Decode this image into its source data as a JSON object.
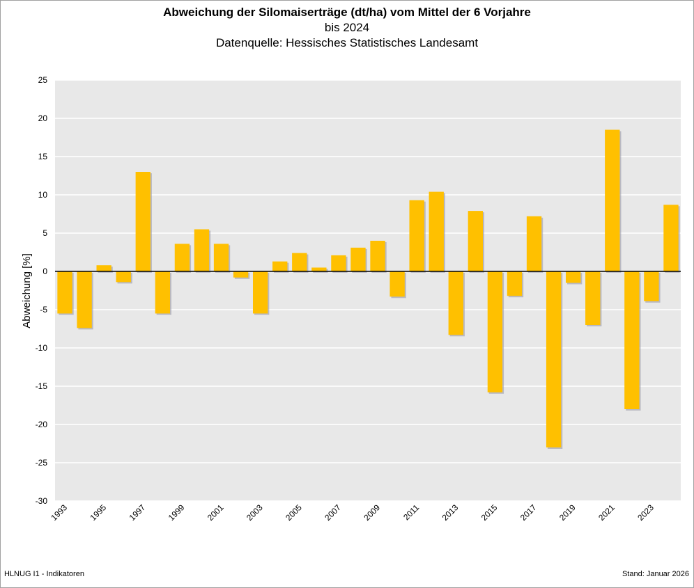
{
  "chart_data": {
    "type": "bar",
    "title": "Abweichung der Silomaiserträge (dt/ha) vom Mittel der 6 Vorjahre",
    "subtitle": "bis 2024",
    "source": "Datenquelle: Hessisches Statistisches Landesamt",
    "xlabel": "",
    "ylabel": "Abweichung [%]",
    "ylim": [
      -30,
      25
    ],
    "yticks": [
      25,
      20,
      15,
      10,
      5,
      0,
      -5,
      -10,
      -15,
      -20,
      -25,
      -30
    ],
    "grid": true,
    "bar_color": "#FFC000",
    "plot_background": "#E8E8E8",
    "categories": [
      "1993",
      "1994",
      "1995",
      "1996",
      "1997",
      "1998",
      "1999",
      "2000",
      "2001",
      "2002",
      "2003",
      "2004",
      "2005",
      "2006",
      "2007",
      "2008",
      "2009",
      "2010",
      "2011",
      "2012",
      "2013",
      "2014",
      "2015",
      "2016",
      "2017",
      "2018",
      "2019",
      "2020",
      "2021",
      "2022",
      "2023",
      "2024"
    ],
    "xtick_labels": [
      "1993",
      "1995",
      "1997",
      "1999",
      "2001",
      "2003",
      "2005",
      "2007",
      "2009",
      "2011",
      "2013",
      "2015",
      "2017",
      "2019",
      "2021",
      "2023"
    ],
    "values": [
      -5.5,
      -7.4,
      0.8,
      -1.4,
      13.0,
      -5.5,
      3.6,
      5.5,
      3.6,
      -0.8,
      -5.5,
      1.3,
      2.4,
      0.5,
      2.1,
      3.1,
      4.0,
      -3.3,
      9.3,
      10.4,
      -8.3,
      7.9,
      -15.8,
      -3.2,
      7.2,
      -23.0,
      -1.5,
      -7.0,
      18.5,
      -18.0,
      -3.9,
      8.7
    ]
  },
  "footer": {
    "left": "HLNUG I1 - Indikatoren",
    "right": "Stand: Januar 2026"
  }
}
